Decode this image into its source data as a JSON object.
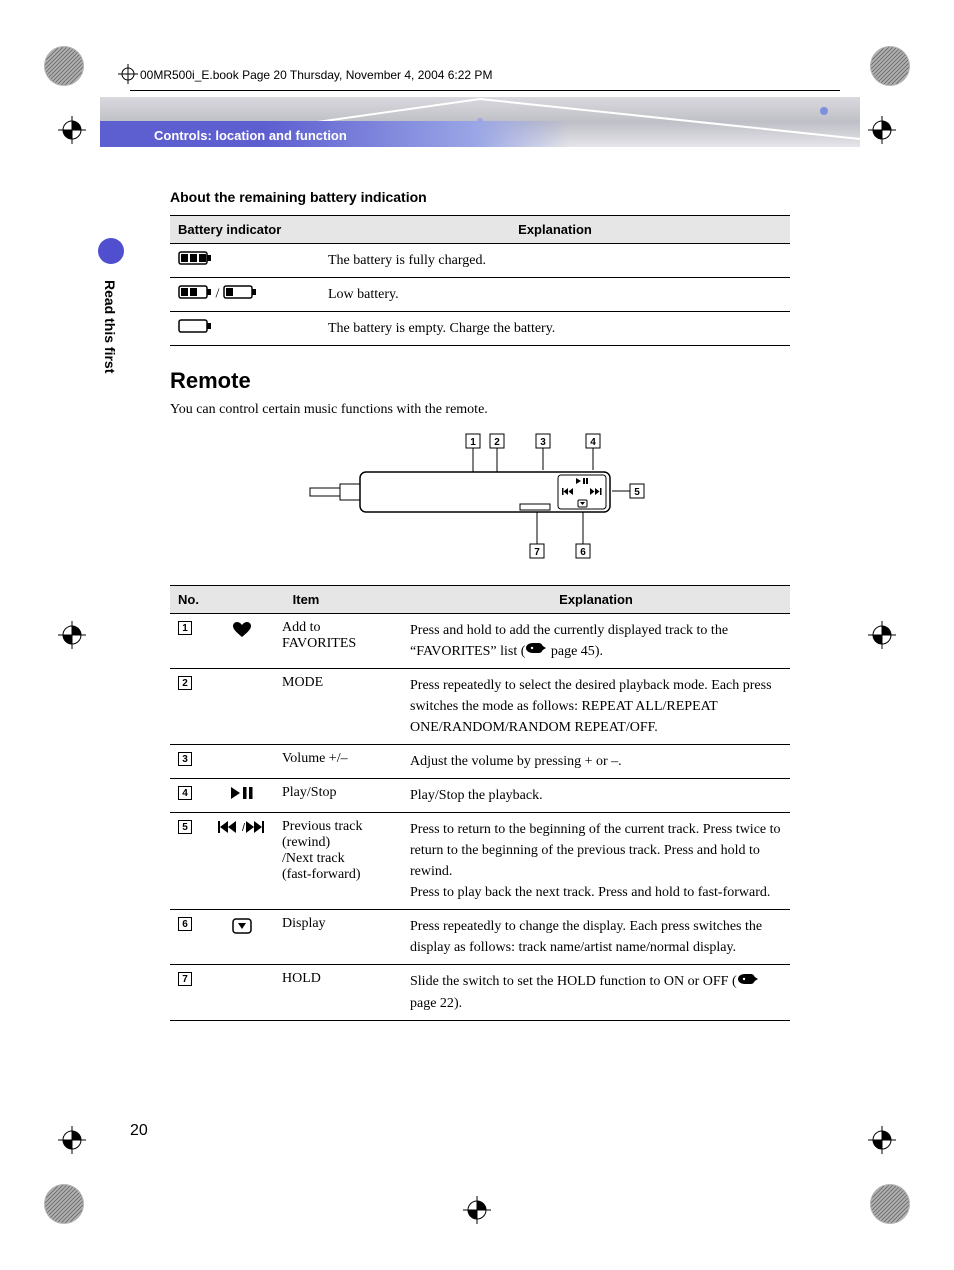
{
  "breadcrumb": "00MR500i_E.book  Page 20  Thursday, November 4, 2004  6:22 PM",
  "header_band_title": "Controls: location and function",
  "side_tab_label": "Read this first",
  "section_battery_title": "About the remaining battery indication",
  "battery_table": {
    "headers": {
      "indicator": "Battery indicator",
      "explanation": "Explanation"
    },
    "rows": [
      {
        "level": "full",
        "explanation": "The battery is fully charged."
      },
      {
        "level": "low",
        "explanation": "Low battery."
      },
      {
        "level": "empty",
        "explanation": "The battery is empty. Charge the battery."
      }
    ]
  },
  "remote_heading": "Remote",
  "remote_desc": "You can control certain music functions with the remote.",
  "remote_callouts": [
    "1",
    "2",
    "3",
    "4",
    "5",
    "6",
    "7"
  ],
  "controls_table": {
    "headers": {
      "no": "No.",
      "item": "Item",
      "explanation": "Explanation"
    },
    "rows": [
      {
        "no": "1",
        "icon": "heart",
        "item": "Add to FAVORITES",
        "explanation_pre": "Press and hold to add the currently displayed track to the “FAVORITES” list (",
        "page_ref": "page 45",
        "explanation_post": ")."
      },
      {
        "no": "2",
        "icon": "",
        "item": "MODE",
        "explanation": "Press repeatedly to select the desired playback mode. Each press switches the mode as follows: REPEAT ALL/REPEAT ONE/RANDOM/RANDOM REPEAT/OFF."
      },
      {
        "no": "3",
        "icon": "",
        "item": "Volume +/–",
        "explanation": "Adjust the volume by pressing + or –."
      },
      {
        "no": "4",
        "icon": "playpause",
        "item": "Play/Stop",
        "explanation": "Play/Stop the playback."
      },
      {
        "no": "5",
        "icon": "prevnext",
        "item": "Previous track (rewind)\n/Next track\n(fast-forward)",
        "explanation": "Press to return to the beginning of the current track. Press twice to return to the beginning of the previous track. Press and hold to rewind.\nPress to play back the next track. Press and hold to fast-forward."
      },
      {
        "no": "6",
        "icon": "display",
        "item": "Display",
        "explanation": "Press repeatedly to change the display. Each press switches the display as follows: track name/artist name/normal display."
      },
      {
        "no": "7",
        "icon": "",
        "item": "HOLD",
        "explanation_pre": "Slide the switch to set the HOLD function to ON or OFF (",
        "page_ref": "page 22",
        "explanation_post": ")."
      }
    ]
  },
  "page_number": "20",
  "colors": {
    "accent": "#4f4fcf",
    "band_strip_start": "#5d5ed0",
    "table_header_bg": "#e6e6e6"
  }
}
